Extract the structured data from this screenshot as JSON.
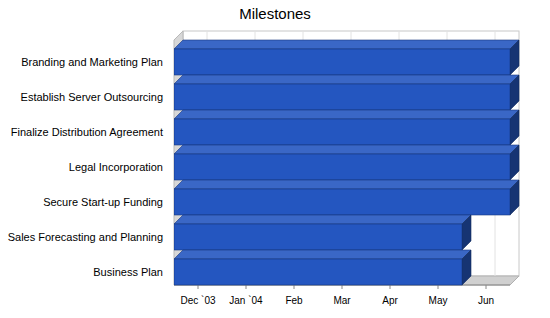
{
  "chart_data": {
    "type": "bar",
    "orientation": "horizontal",
    "title": "Milestones",
    "categories": [
      "Branding and Marketing Plan",
      "Establish Server Outsourcing",
      "Finalize Distribution Agreement",
      "Legal Incorporation",
      "Secure Start-up Funding",
      "Sales Forecasting and Planning",
      "Business Plan"
    ],
    "values": [
      7,
      7,
      7,
      7,
      7,
      6,
      6
    ],
    "color": "#2456c0",
    "xlim": [
      0,
      7
    ],
    "xticks": [
      {
        "value": 0.5,
        "label": "Dec `03"
      },
      {
        "value": 1.5,
        "label": "Jan `04"
      },
      {
        "value": 2.5,
        "label": "Feb"
      },
      {
        "value": 3.5,
        "label": "Mar"
      },
      {
        "value": 4.5,
        "label": "Apr"
      },
      {
        "value": 5.5,
        "label": "May"
      },
      {
        "value": 6.5,
        "label": "Jun"
      }
    ],
    "grid": true
  }
}
